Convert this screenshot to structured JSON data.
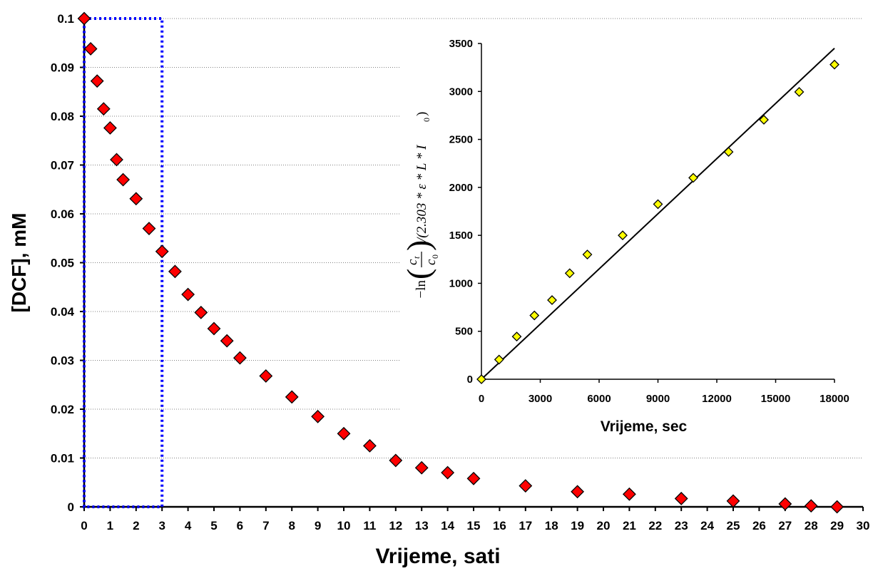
{
  "chart_data": [
    {
      "type": "scatter",
      "xlabel": "Vrijeme, sati",
      "ylabel": "[DCF], mM",
      "xlim": [
        0,
        30
      ],
      "ylim": [
        0,
        0.1
      ],
      "x_ticks": [
        0,
        1,
        2,
        3,
        4,
        5,
        6,
        7,
        8,
        9,
        10,
        11,
        12,
        13,
        14,
        15,
        16,
        17,
        18,
        19,
        20,
        21,
        22,
        23,
        24,
        25,
        26,
        27,
        28,
        29,
        30
      ],
      "y_ticks": [
        0,
        0.01,
        0.02,
        0.03,
        0.04,
        0.05,
        0.06,
        0.07,
        0.08,
        0.09,
        0.1
      ],
      "grid": "horizontal dotted",
      "marker": "diamond",
      "marker_color": "#ff0000",
      "highlight_box": {
        "x_range": [
          0,
          3
        ],
        "y_range": [
          0,
          0.1
        ],
        "color": "#0000ff",
        "style": "dotted"
      },
      "series": [
        {
          "x": [
            0,
            0.25,
            0.5,
            0.75,
            1,
            1.25,
            1.5,
            2,
            2.5,
            3,
            3.5,
            4,
            4.5,
            5,
            5.5,
            6,
            7,
            8,
            9,
            10,
            11,
            12,
            13,
            14,
            15,
            17,
            19,
            21,
            23,
            25,
            27,
            28,
            29
          ],
          "y": [
            0.1,
            0.0938,
            0.0872,
            0.0815,
            0.0776,
            0.0711,
            0.067,
            0.0631,
            0.057,
            0.0523,
            0.0482,
            0.0435,
            0.0398,
            0.0365,
            0.034,
            0.0305,
            0.0268,
            0.0225,
            0.0185,
            0.015,
            0.0125,
            0.0095,
            0.008,
            0.007,
            0.0058,
            0.0043,
            0.0031,
            0.0026,
            0.0017,
            0.0012,
            0.0006,
            0.0002,
            0.0
          ]
        }
      ]
    },
    {
      "type": "scatter",
      "xlabel": "Vrijeme, sec",
      "ylabel_parts": {
        "lead": "−ln",
        "num": "c",
        "num_sub": "t",
        "den": "c",
        "den_sub": "0",
        "tail": "/(2.303 * ε * L * I",
        "tail_sub": "0",
        "close": ")"
      },
      "xlim": [
        0,
        18000
      ],
      "ylim": [
        0,
        3500
      ],
      "x_ticks": [
        0,
        3000,
        6000,
        9000,
        12000,
        15000,
        18000
      ],
      "y_ticks": [
        0,
        500,
        1000,
        1500,
        2000,
        2500,
        3000,
        3500
      ],
      "marker": "diamond",
      "marker_color": "#ffff00",
      "fit_line": {
        "x": [
          0,
          18000
        ],
        "y": [
          0,
          3450
        ],
        "color": "#000000"
      },
      "series": [
        {
          "x": [
            0,
            900,
            1800,
            2700,
            3600,
            4500,
            5400,
            7200,
            9000,
            10800,
            12600,
            14400,
            16200,
            18000
          ],
          "y": [
            0,
            205,
            445,
            665,
            825,
            1105,
            1300,
            1500,
            1825,
            2100,
            2370,
            2705,
            2995,
            3280
          ]
        }
      ]
    }
  ]
}
